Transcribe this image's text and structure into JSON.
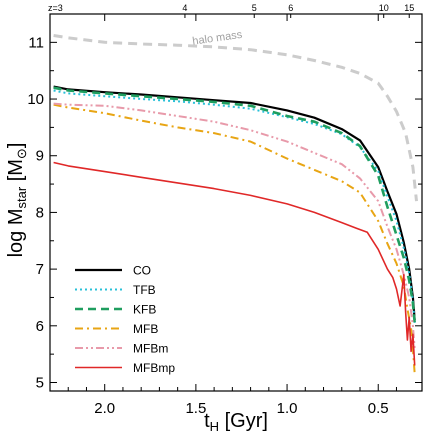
{
  "chart_data": {
    "type": "line",
    "xlabel_main": "t",
    "xlabel_sub": "H",
    "xlabel_unit": " [Gyr]",
    "ylabel_main": "log M",
    "ylabel_sub": "star",
    "ylabel_unit_open": " [M",
    "ylabel_unit_sub": "⊙",
    "ylabel_unit_close": "]",
    "xlim": [
      2.3,
      0.26
    ],
    "ylim": [
      4.85,
      11.5
    ],
    "xticks": [
      2.0,
      1.5,
      1.0,
      0.5
    ],
    "xtick_labels": [
      "2.0",
      "1.5",
      "1.0",
      "0.5"
    ],
    "yticks": [
      5,
      6,
      7,
      8,
      9,
      10,
      11
    ],
    "ytick_labels": [
      "5",
      "6",
      "7",
      "8",
      "9",
      "10",
      "11"
    ],
    "top_axis": {
      "ticks": [
        2.3,
        1.56,
        1.18,
        0.98,
        0.47,
        0.33
      ],
      "labels": [
        "z=3",
        "4",
        "5",
        "6",
        "10",
        "15"
      ]
    },
    "annotation": {
      "text": "halo mass",
      "x": 1.38,
      "y": 11.02
    },
    "legend_position": "bottom-left",
    "series": [
      {
        "name": "halo",
        "style": "dashed-gray",
        "color": "#cccccc",
        "legend": false,
        "x": [
          2.28,
          2.2,
          2.0,
          1.8,
          1.6,
          1.4,
          1.2,
          1.0,
          0.85,
          0.7,
          0.6,
          0.5,
          0.45,
          0.4,
          0.35,
          0.31,
          0.29
        ],
        "y": [
          11.12,
          11.08,
          11.0,
          10.97,
          10.95,
          10.92,
          10.87,
          10.78,
          10.68,
          10.56,
          10.45,
          10.28,
          10.05,
          9.78,
          9.4,
          8.8,
          8.2
        ]
      },
      {
        "name": "CO",
        "style": "solid",
        "color": "#000000",
        "legend": true,
        "x": [
          2.28,
          2.2,
          2.0,
          1.8,
          1.6,
          1.4,
          1.2,
          1.0,
          0.85,
          0.7,
          0.6,
          0.5,
          0.45,
          0.4,
          0.36,
          0.33,
          0.31,
          0.3
        ],
        "y": [
          10.22,
          10.17,
          10.12,
          10.08,
          10.03,
          9.98,
          9.93,
          9.8,
          9.67,
          9.47,
          9.27,
          8.8,
          8.37,
          7.97,
          7.47,
          7.0,
          6.5,
          6.1
        ]
      },
      {
        "name": "TFB",
        "style": "dotted",
        "color": "#29c0d8",
        "legend": true,
        "x": [
          2.28,
          2.2,
          2.0,
          1.8,
          1.6,
          1.4,
          1.2,
          1.0,
          0.85,
          0.7,
          0.6,
          0.5,
          0.45,
          0.4,
          0.36,
          0.33,
          0.31,
          0.3
        ],
        "y": [
          10.15,
          10.1,
          10.05,
          10.0,
          9.96,
          9.9,
          9.83,
          9.68,
          9.56,
          9.38,
          9.15,
          8.73,
          8.28,
          7.85,
          7.37,
          6.92,
          6.45,
          6.05
        ]
      },
      {
        "name": "KFB",
        "style": "dashed",
        "color": "#1f9e5f",
        "legend": true,
        "x": [
          2.28,
          2.2,
          2.0,
          1.8,
          1.6,
          1.4,
          1.2,
          1.0,
          0.85,
          0.7,
          0.6,
          0.5,
          0.45,
          0.4,
          0.36,
          0.33,
          0.31,
          0.3
        ],
        "y": [
          10.2,
          10.15,
          10.1,
          10.05,
          10.0,
          9.95,
          9.88,
          9.7,
          9.6,
          9.4,
          9.17,
          8.65,
          8.1,
          7.6,
          7.2,
          6.8,
          6.4,
          6.05
        ]
      },
      {
        "name": "MFB",
        "style": "dashdot",
        "color": "#e8a514",
        "legend": true,
        "x": [
          2.28,
          2.2,
          2.0,
          1.8,
          1.6,
          1.4,
          1.2,
          1.0,
          0.85,
          0.7,
          0.6,
          0.5,
          0.45,
          0.4,
          0.36,
          0.34,
          0.32,
          0.31,
          0.3
        ],
        "y": [
          9.9,
          9.85,
          9.75,
          9.62,
          9.5,
          9.4,
          9.25,
          8.95,
          8.75,
          8.55,
          8.35,
          7.85,
          7.45,
          7.1,
          6.7,
          6.3,
          5.95,
          5.6,
          5.15
        ]
      },
      {
        "name": "MFBm",
        "style": "dashdotdot",
        "color": "#e89aaa",
        "legend": true,
        "x": [
          2.28,
          2.2,
          2.0,
          1.8,
          1.6,
          1.4,
          1.2,
          1.0,
          0.85,
          0.7,
          0.6,
          0.5,
          0.45,
          0.4,
          0.36,
          0.33,
          0.31,
          0.3
        ],
        "y": [
          9.92,
          9.9,
          9.88,
          9.8,
          9.7,
          9.6,
          9.45,
          9.25,
          9.05,
          8.85,
          8.6,
          8.2,
          7.75,
          7.35,
          6.9,
          6.5,
          6.0,
          5.6
        ]
      },
      {
        "name": "MFBmp",
        "style": "solid-thin",
        "color": "#e02828",
        "legend": true,
        "x": [
          2.28,
          2.2,
          2.0,
          1.8,
          1.6,
          1.4,
          1.2,
          1.0,
          0.85,
          0.7,
          0.62,
          0.56,
          0.5,
          0.45,
          0.42,
          0.4,
          0.38,
          0.36,
          0.35,
          0.34,
          0.33,
          0.32,
          0.31,
          0.3
        ],
        "y": [
          8.88,
          8.82,
          8.72,
          8.62,
          8.52,
          8.42,
          8.3,
          8.15,
          8.0,
          7.82,
          7.72,
          7.65,
          7.35,
          7.0,
          6.85,
          6.65,
          6.35,
          6.9,
          6.25,
          5.75,
          6.15,
          5.55,
          5.85,
          5.3
        ]
      }
    ]
  }
}
